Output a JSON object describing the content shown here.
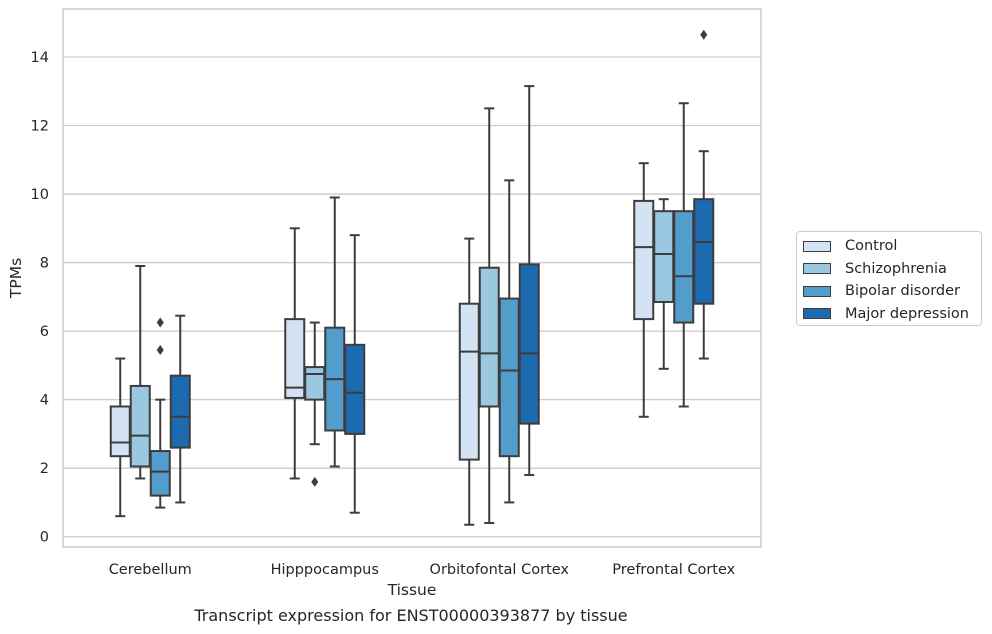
{
  "chart_data": {
    "type": "box",
    "xlabel": "Tissue",
    "ylabel": "TPMs",
    "caption": "Transcript expression for ENST00000393877 by tissue",
    "ylim": [
      -0.3,
      15.4
    ],
    "yticks": [
      0,
      2,
      4,
      6,
      8,
      10,
      12,
      14
    ],
    "grid": "horizontal",
    "legend_placement": "right",
    "categories": [
      "Cerebellum",
      "Hipppocampus",
      "Orbitofontal Cortex",
      "Prefrontal Cortex"
    ],
    "series": [
      {
        "name": "Control",
        "color": "#d3e3f3",
        "boxes": [
          {
            "whislo": 0.6,
            "q1": 2.35,
            "med": 2.75,
            "q3": 3.8,
            "whishi": 5.2,
            "fliers": []
          },
          {
            "whislo": 1.7,
            "q1": 4.05,
            "med": 4.35,
            "q3": 6.35,
            "whishi": 9.0,
            "fliers": []
          },
          {
            "whislo": 0.35,
            "q1": 2.25,
            "med": 5.4,
            "q3": 6.8,
            "whishi": 8.7,
            "fliers": []
          },
          {
            "whislo": 3.5,
            "q1": 6.35,
            "med": 8.45,
            "q3": 9.8,
            "whishi": 10.9,
            "fliers": []
          }
        ]
      },
      {
        "name": "Schizophrenia",
        "color": "#9ac8e0",
        "boxes": [
          {
            "whislo": 1.7,
            "q1": 2.05,
            "med": 2.95,
            "q3": 4.4,
            "whishi": 7.9,
            "fliers": []
          },
          {
            "whislo": 2.7,
            "q1": 4.0,
            "med": 4.75,
            "q3": 4.95,
            "whishi": 6.25,
            "fliers": [
              1.6
            ]
          },
          {
            "whislo": 0.4,
            "q1": 3.8,
            "med": 5.35,
            "q3": 7.85,
            "whishi": 12.5,
            "fliers": []
          },
          {
            "whislo": 4.9,
            "q1": 6.85,
            "med": 8.25,
            "q3": 9.5,
            "whishi": 9.85,
            "fliers": []
          }
        ]
      },
      {
        "name": "Bipolar disorder",
        "color": "#529dcc",
        "boxes": [
          {
            "whislo": 0.85,
            "q1": 1.2,
            "med": 1.9,
            "q3": 2.5,
            "whishi": 4.0,
            "fliers": [
              5.45,
              6.25
            ]
          },
          {
            "whislo": 2.05,
            "q1": 3.1,
            "med": 4.6,
            "q3": 6.1,
            "whishi": 9.9,
            "fliers": []
          },
          {
            "whislo": 1.0,
            "q1": 2.35,
            "med": 4.85,
            "q3": 6.95,
            "whishi": 10.4,
            "fliers": []
          },
          {
            "whislo": 3.8,
            "q1": 6.25,
            "med": 7.6,
            "q3": 9.5,
            "whishi": 12.65,
            "fliers": []
          }
        ]
      },
      {
        "name": "Major depression",
        "color": "#1c6aaf",
        "boxes": [
          {
            "whislo": 1.0,
            "q1": 2.6,
            "med": 3.5,
            "q3": 4.7,
            "whishi": 6.45,
            "fliers": []
          },
          {
            "whislo": 0.7,
            "q1": 3.0,
            "med": 4.2,
            "q3": 5.6,
            "whishi": 8.8,
            "fliers": []
          },
          {
            "whislo": 1.8,
            "q1": 3.3,
            "med": 5.35,
            "q3": 7.95,
            "whishi": 13.15,
            "fliers": []
          },
          {
            "whislo": 5.2,
            "q1": 6.8,
            "med": 8.6,
            "q3": 9.85,
            "whishi": 11.25,
            "fliers": [
              14.65
            ]
          }
        ]
      }
    ]
  }
}
